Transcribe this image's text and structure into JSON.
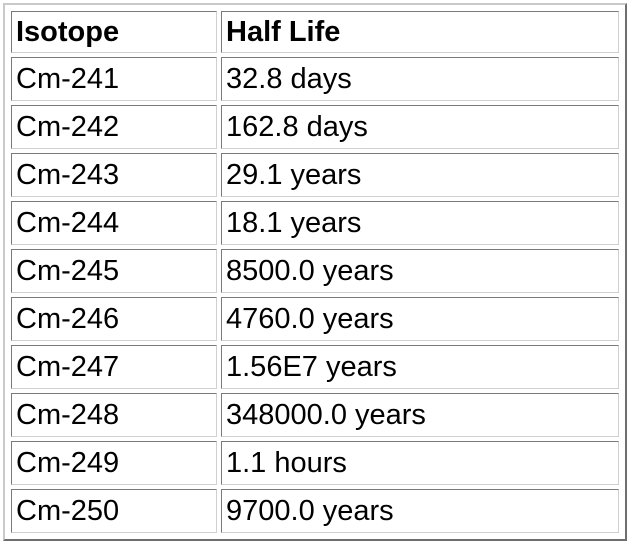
{
  "table": {
    "headers": {
      "isotope": "Isotope",
      "half_life": "Half Life"
    },
    "rows": [
      {
        "isotope": "Cm-241",
        "half_life": "32.8 days"
      },
      {
        "isotope": "Cm-242",
        "half_life": "162.8 days"
      },
      {
        "isotope": "Cm-243",
        "half_life": "29.1 years"
      },
      {
        "isotope": "Cm-244",
        "half_life": "18.1 years"
      },
      {
        "isotope": "Cm-245",
        "half_life": "8500.0 years"
      },
      {
        "isotope": "Cm-246",
        "half_life": "4760.0 years"
      },
      {
        "isotope": "Cm-247",
        "half_life": "1.56E7 years"
      },
      {
        "isotope": "Cm-248",
        "half_life": "348000.0 years"
      },
      {
        "isotope": "Cm-249",
        "half_life": "1.1 hours"
      },
      {
        "isotope": "Cm-250",
        "half_life": "9700.0 years"
      }
    ]
  }
}
